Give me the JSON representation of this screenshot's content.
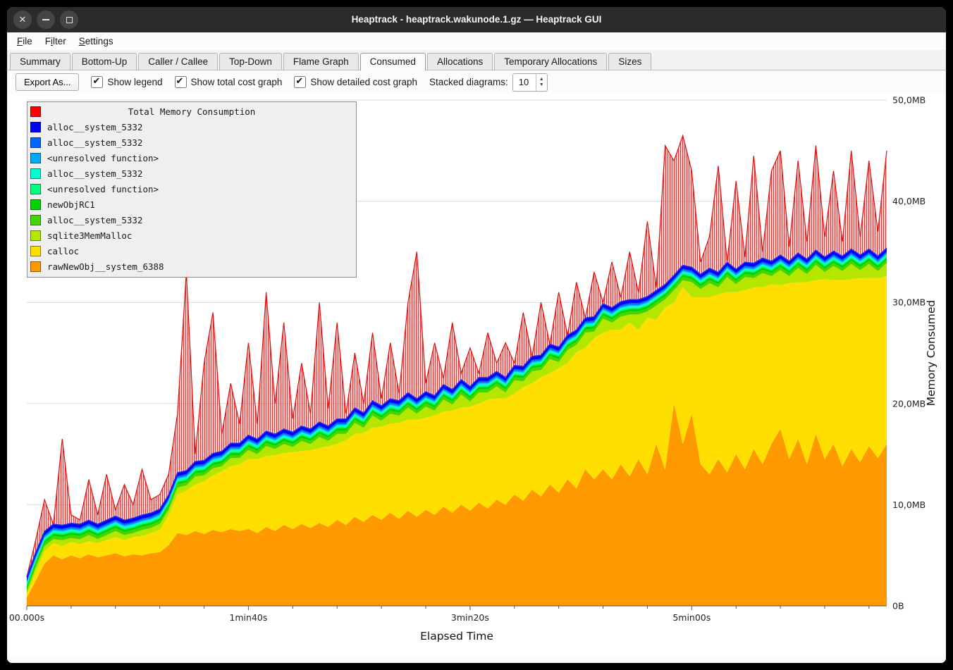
{
  "window": {
    "title": "Heaptrack - heaptrack.wakunode.1.gz — Heaptrack GUI"
  },
  "titlebar_icons": {
    "close": "✕",
    "minimize": "minimize-bar",
    "maximize": "maximize-square"
  },
  "menu": {
    "items": [
      {
        "label": "File",
        "mnemonic_index": 0
      },
      {
        "label": "Filter",
        "mnemonic_index": 1
      },
      {
        "label": "Settings",
        "mnemonic_index": 0
      }
    ]
  },
  "tabs": {
    "active": "Consumed",
    "items": [
      "Summary",
      "Bottom-Up",
      "Caller / Callee",
      "Top-Down",
      "Flame Graph",
      "Consumed",
      "Allocations",
      "Temporary Allocations",
      "Sizes"
    ]
  },
  "toolbar": {
    "export_label": "Export As...",
    "checkboxes": [
      {
        "label": "Show legend",
        "checked": true
      },
      {
        "label": "Show total cost graph",
        "checked": true
      },
      {
        "label": "Show detailed cost graph",
        "checked": true
      }
    ],
    "stacked_label": "Stacked diagrams:",
    "stacked_value": "10"
  },
  "chart_data": {
    "type": "area",
    "title": "Total Memory Consumption",
    "xlabel": "Elapsed Time",
    "ylabel": "Memory Consumed",
    "x_tick_values": [
      0,
      100,
      200,
      300
    ],
    "x_tick_labels": [
      "00.000s",
      "1min40s",
      "3min20s",
      "5min00s"
    ],
    "x_minor_tick_step": 20,
    "y_tick_values": [
      0,
      10,
      20,
      30,
      40,
      50
    ],
    "y_tick_labels": [
      "0B",
      "10,0MB",
      "20,0MB",
      "30,0MB",
      "40,0MB",
      "50,0MB"
    ],
    "ylim": [
      0,
      50
    ],
    "unit": "MB",
    "x_start": 0,
    "x_step": 4,
    "x_max": 388,
    "grid": true,
    "legend_position": "top-left",
    "stacked_series": [
      {
        "name": "rawNewObj__system_6388",
        "color": "#ff9900",
        "values": [
          0.8,
          2.5,
          4.2,
          5.0,
          4.6,
          5.0,
          4.7,
          5.1,
          4.8,
          5.0,
          5.2,
          4.9,
          5.1,
          5.0,
          5.2,
          5.3,
          6.0,
          7.2,
          7.0,
          7.4,
          7.1,
          7.5,
          7.3,
          7.6,
          7.4,
          7.6,
          7.2,
          7.8,
          7.4,
          8.0,
          7.6,
          8.1,
          7.7,
          8.2,
          7.8,
          8.5,
          8.0,
          8.8,
          8.3,
          9.0,
          8.5,
          9.2,
          8.6,
          9.4,
          8.8,
          9.5,
          9.0,
          9.8,
          9.2,
          10.0,
          9.4,
          10.2,
          9.6,
          10.5,
          10.0,
          11.0,
          10.4,
          11.5,
          10.8,
          12.0,
          11.2,
          12.5,
          11.6,
          13.5,
          12.5,
          13.5,
          12.5,
          14.0,
          12.8,
          14.5,
          13.0,
          16.0,
          13.5,
          20.0,
          16.0,
          19.0,
          14.0,
          13.0,
          14.5,
          13.2,
          15.0,
          13.5,
          15.5,
          14.0,
          16.0,
          17.5,
          14.5,
          16.5,
          14.0,
          17.0,
          14.5,
          16.0,
          13.8,
          15.5,
          14.2,
          15.8,
          14.6,
          16.0
        ]
      },
      {
        "name": "calloc",
        "color": "#ffdf00",
        "values": [
          0.3,
          0.9,
          1.2,
          1.2,
          1.3,
          1.3,
          1.4,
          1.3,
          1.4,
          1.5,
          1.6,
          1.6,
          1.7,
          1.9,
          2.0,
          2.2,
          3.0,
          3.8,
          4.4,
          4.6,
          5.2,
          5.4,
          6.0,
          6.2,
          6.6,
          6.9,
          7.3,
          7.0,
          7.5,
          7.1,
          7.6,
          7.2,
          7.7,
          7.4,
          8.0,
          7.5,
          8.4,
          8.2,
          8.8,
          8.6,
          9.2,
          8.8,
          9.5,
          9.0,
          9.6,
          9.1,
          9.8,
          9.4,
          10.1,
          9.6,
          10.3,
          9.8,
          10.8,
          10.0,
          10.5,
          10.0,
          11.2,
          10.5,
          11.8,
          11.0,
          12.3,
          11.5,
          13.5,
          12.0,
          14.0,
          13.5,
          14.8,
          13.3,
          15.2,
          12.8,
          15.5,
          12.3,
          16.0,
          10.0,
          15.5,
          11.5,
          16.5,
          17.5,
          16.3,
          17.8,
          16.0,
          17.7,
          16.0,
          17.5,
          15.8,
          14.2,
          17.4,
          15.5,
          18.0,
          15.2,
          17.8,
          16.2,
          18.4,
          16.8,
          18.2,
          16.6,
          17.8,
          16.6
        ]
      },
      {
        "name": "sqlite3MemMalloc",
        "color": "#b4e600",
        "values": [
          0.3,
          0.4,
          0.5,
          0.4,
          0.6,
          0.4,
          0.5,
          0.6,
          0.4,
          0.5,
          0.6,
          0.5,
          0.4,
          0.6,
          0.5,
          0.6,
          0.5,
          0.7,
          0.5,
          0.8,
          0.6,
          0.7,
          0.5,
          0.8,
          0.6,
          0.9,
          0.5,
          1.0,
          0.6,
          0.9,
          0.5,
          1.0,
          0.6,
          1.1,
          0.5,
          1.0,
          0.6,
          1.1,
          0.5,
          1.2,
          0.6,
          1.0,
          0.7,
          1.2,
          0.6,
          1.1,
          0.5,
          1.2,
          0.6,
          1.3,
          0.5,
          1.1,
          0.7,
          1.2,
          0.6,
          1.3,
          0.6,
          1.2,
          0.7,
          1.4,
          0.6,
          1.3,
          0.7,
          1.5,
          0.6,
          1.4,
          0.7,
          1.3,
          0.8,
          1.5,
          0.6,
          1.4,
          0.8,
          1.2,
          0.7,
          1.5,
          0.8,
          1.4,
          0.7,
          1.5,
          0.8,
          1.3,
          0.9,
          1.4,
          0.8,
          1.5,
          0.7,
          1.4,
          0.8,
          1.5,
          0.7,
          1.4,
          0.9,
          1.5,
          0.8,
          1.4,
          0.7,
          1.3
        ]
      },
      {
        "name": "alloc__system_5332",
        "color": "#44d400",
        "const": 0.3
      },
      {
        "name": "newObjRC1",
        "color": "#00d400",
        "const": 0.25
      },
      {
        "name": "<unresolved function>",
        "color": "#00ff7f",
        "const": 0.15
      },
      {
        "name": "alloc__system_5332",
        "color": "#00ffd0",
        "const": 0.15
      },
      {
        "name": "<unresolved function>",
        "color": "#00aaff",
        "const": 0.12
      },
      {
        "name": "alloc__system_5332",
        "color": "#0066ff",
        "const": 0.15
      },
      {
        "name": "alloc__system_5332",
        "color": "#0000ff",
        "const": 0.35
      }
    ],
    "total_series": {
      "name": "Total Memory Consumption",
      "color": "#ff0000",
      "values": [
        2.5,
        6.5,
        10.5,
        8.0,
        16.5,
        9.0,
        8.5,
        12.5,
        9.0,
        13.0,
        9.5,
        12.0,
        10.0,
        13.5,
        10.5,
        11.0,
        13.0,
        19.0,
        33.0,
        15.0,
        24.0,
        29.0,
        17.0,
        22.0,
        18.0,
        26.0,
        18.0,
        31.0,
        20.0,
        28.0,
        18.5,
        24.0,
        19.0,
        30.0,
        19.5,
        28.0,
        19.0,
        25.0,
        20.0,
        27.0,
        20.5,
        26.0,
        21.0,
        30.0,
        35.0,
        22.0,
        26.0,
        22.5,
        28.0,
        23.0,
        25.5,
        23.0,
        27.0,
        24.0,
        26.0,
        24.0,
        29.0,
        24.5,
        30.0,
        25.0,
        31.0,
        26.0,
        32.0,
        28.0,
        33.0,
        30.0,
        34.0,
        30.5,
        35.0,
        31.0,
        38.0,
        31.5,
        45.5,
        44.0,
        46.5,
        43.0,
        34.0,
        36.5,
        43.5,
        34.0,
        42.0,
        34.5,
        44.5,
        35.0,
        43.0,
        45.0,
        35.5,
        44.0,
        36.0,
        45.5,
        36.5,
        43.0,
        36.0,
        45.0,
        36.5,
        44.0,
        37.0,
        45.0
      ]
    }
  }
}
